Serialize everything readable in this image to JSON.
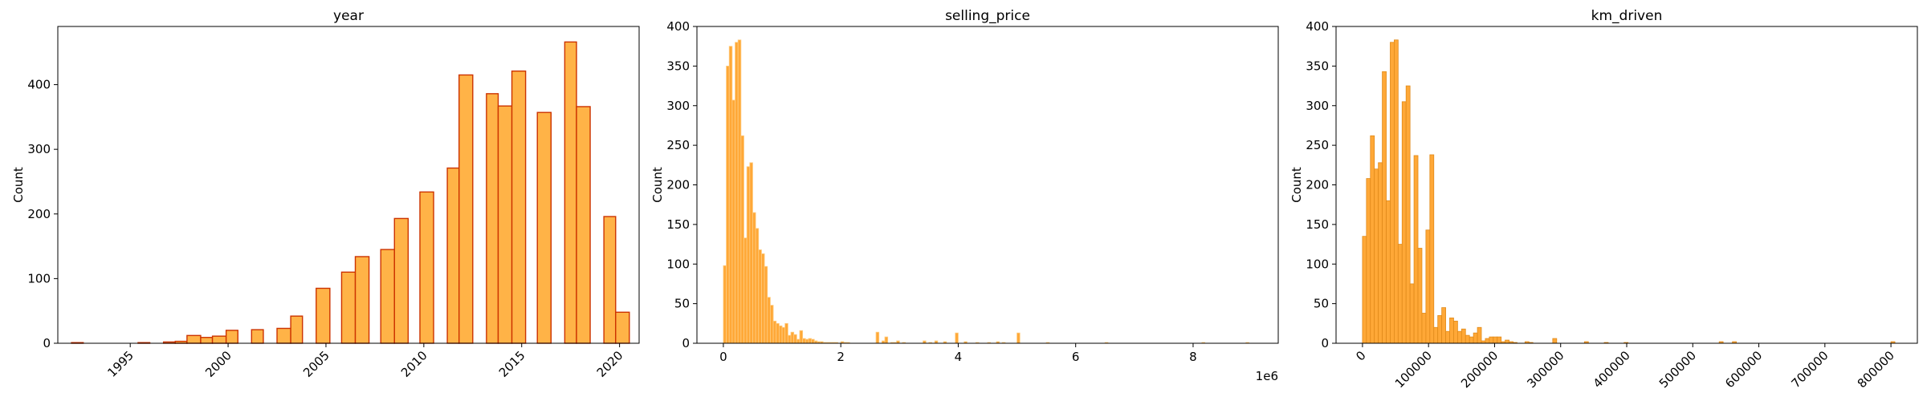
{
  "chart_data": [
    {
      "type": "bar",
      "title": "year",
      "xlabel": "",
      "ylabel": "Count",
      "xlim": [
        1991.3,
        2021.0
      ],
      "ylim": [
        0,
        490
      ],
      "x_ticks": [
        1995,
        2000,
        2005,
        2010,
        2015,
        2020
      ],
      "x_tick_labels": [
        "1995",
        "2000",
        "2005",
        "2010",
        "2015",
        "2020"
      ],
      "x_tick_rotation": 45,
      "y_ticks": [
        0,
        100,
        200,
        300,
        400
      ],
      "y_tick_labels": [
        "0",
        "100",
        "200",
        "300",
        "400"
      ],
      "bar_color": "#ffb347",
      "edge_color": "#cc3300",
      "bins": [
        {
          "x0": 1992.0,
          "x1": 1992.6,
          "count": 1
        },
        {
          "x0": 1995.4,
          "x1": 1996.0,
          "count": 1
        },
        {
          "x0": 1996.7,
          "x1": 1997.3,
          "count": 2
        },
        {
          "x0": 1997.3,
          "x1": 1997.9,
          "count": 3
        },
        {
          "x0": 1997.9,
          "x1": 1998.6,
          "count": 12
        },
        {
          "x0": 1998.6,
          "x1": 1999.2,
          "count": 9
        },
        {
          "x0": 1999.2,
          "x1": 1999.9,
          "count": 11
        },
        {
          "x0": 1999.9,
          "x1": 2000.5,
          "count": 20
        },
        {
          "x0": 2001.2,
          "x1": 2001.8,
          "count": 21
        },
        {
          "x0": 2002.5,
          "x1": 2003.2,
          "count": 23
        },
        {
          "x0": 2003.2,
          "x1": 2003.8,
          "count": 42
        },
        {
          "x0": 2004.5,
          "x1": 2005.2,
          "count": 85
        },
        {
          "x0": 2005.8,
          "x1": 2006.5,
          "count": 110
        },
        {
          "x0": 2006.5,
          "x1": 2007.2,
          "count": 134
        },
        {
          "x0": 2007.8,
          "x1": 2008.5,
          "count": 145
        },
        {
          "x0": 2008.5,
          "x1": 2009.2,
          "count": 193
        },
        {
          "x0": 2009.8,
          "x1": 2010.5,
          "count": 234
        },
        {
          "x0": 2011.2,
          "x1": 2011.8,
          "count": 271
        },
        {
          "x0": 2011.8,
          "x1": 2012.5,
          "count": 415
        },
        {
          "x0": 2013.2,
          "x1": 2013.8,
          "count": 386
        },
        {
          "x0": 2013.8,
          "x1": 2014.5,
          "count": 367
        },
        {
          "x0": 2014.5,
          "x1": 2015.2,
          "count": 421
        },
        {
          "x0": 2015.8,
          "x1": 2016.5,
          "count": 357
        },
        {
          "x0": 2017.2,
          "x1": 2017.8,
          "count": 466
        },
        {
          "x0": 2017.8,
          "x1": 2018.5,
          "count": 366
        },
        {
          "x0": 2019.2,
          "x1": 2019.8,
          "count": 196
        },
        {
          "x0": 2019.8,
          "x1": 2020.5,
          "count": 48
        }
      ]
    },
    {
      "type": "bar",
      "title": "selling_price",
      "xlabel": "",
      "ylabel": "Count",
      "offset_label": "1e6",
      "xlim": [
        -0.45,
        9.45
      ],
      "ylim": [
        0,
        400
      ],
      "x_ticks": [
        0,
        2,
        4,
        6,
        8
      ],
      "x_tick_labels": [
        "0",
        "2",
        "4",
        "6",
        "8"
      ],
      "x_tick_rotation": 0,
      "y_ticks": [
        0,
        50,
        100,
        150,
        200,
        250,
        300,
        350,
        400
      ],
      "y_tick_labels": [
        "0",
        "50",
        "100",
        "150",
        "200",
        "250",
        "300",
        "350",
        "400"
      ],
      "bar_color": "#ffa837",
      "edge_color": "#ffcc80",
      "bin_width": 0.05,
      "bin_start": 0.0,
      "counts": [
        98,
        350,
        375,
        307,
        380,
        383,
        262,
        133,
        223,
        228,
        165,
        145,
        118,
        113,
        97,
        58,
        48,
        28,
        25,
        22,
        20,
        25,
        10,
        14,
        11,
        5,
        16,
        6,
        5,
        6,
        5,
        3,
        2,
        2,
        1,
        1,
        1,
        1,
        1,
        0,
        2,
        1,
        1,
        0,
        0,
        0,
        0,
        0,
        0,
        0,
        0,
        0,
        14,
        0,
        3,
        8,
        0,
        1,
        1,
        3,
        0,
        1,
        0,
        0,
        0,
        0,
        0,
        0,
        3,
        0,
        1,
        0,
        3,
        0,
        0,
        2,
        0,
        0,
        0,
        13,
        0,
        0,
        2,
        0,
        0,
        0,
        1,
        0,
        0,
        0,
        1,
        0,
        0,
        2,
        0,
        1,
        0,
        0,
        0,
        0,
        13
      ],
      "sparse_bins": [
        {
          "x0": 5.5,
          "x1": 5.55,
          "count": 1
        },
        {
          "x0": 6.5,
          "x1": 6.55,
          "count": 1
        },
        {
          "x0": 8.15,
          "x1": 8.2,
          "count": 1
        },
        {
          "x0": 8.9,
          "x1": 8.95,
          "count": 1
        }
      ]
    },
    {
      "type": "bar",
      "title": "km_driven",
      "xlabel": "",
      "ylabel": "Count",
      "xlim": [
        -40000,
        840000
      ],
      "ylim": [
        0,
        400
      ],
      "x_ticks": [
        0,
        100000,
        200000,
        300000,
        400000,
        500000,
        600000,
        700000,
        800000
      ],
      "x_tick_labels": [
        "0",
        "100000",
        "200000",
        "300000",
        "400000",
        "500000",
        "600000",
        "700000",
        "800000"
      ],
      "x_tick_rotation": 45,
      "y_ticks": [
        0,
        50,
        100,
        150,
        200,
        250,
        300,
        350,
        400
      ],
      "y_tick_labels": [
        "0",
        "50",
        "100",
        "150",
        "200",
        "250",
        "300",
        "350",
        "400"
      ],
      "bar_color": "#ffa837",
      "edge_color": "#e08a1a",
      "bin_width": 6000,
      "bin_start": 0,
      "counts": [
        135,
        208,
        262,
        220,
        228,
        343,
        180,
        380,
        383,
        125,
        305,
        325,
        75,
        237,
        120,
        38,
        143,
        238,
        20,
        35,
        45,
        15,
        32,
        28,
        15,
        18,
        10,
        8,
        13,
        20,
        3,
        6,
        8,
        8,
        8,
        2,
        4,
        2,
        1,
        0,
        0,
        2,
        1,
        0,
        0,
        0,
        0,
        0,
        6,
        0,
        0,
        0,
        0,
        0,
        0,
        0,
        2,
        0,
        0,
        0,
        0,
        1,
        0,
        0,
        0,
        0,
        1,
        0,
        0,
        0,
        0,
        0,
        0,
        0,
        0,
        0,
        0,
        0,
        0,
        0,
        0,
        0,
        0,
        0,
        0,
        0,
        0,
        0,
        0,
        0,
        2
      ],
      "sparse_bins": [
        {
          "x0": 560000,
          "x1": 566000,
          "count": 2
        },
        {
          "x0": 800000,
          "x1": 806000,
          "count": 2
        }
      ]
    }
  ]
}
